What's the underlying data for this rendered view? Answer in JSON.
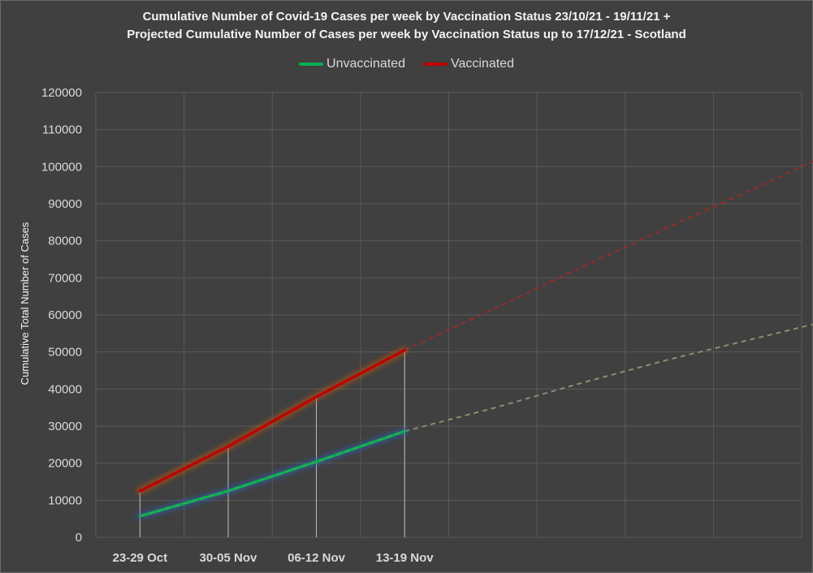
{
  "chart_data": {
    "type": "line",
    "title_line1": "Cumulative Number of Covid-19 Cases per week by Vaccination Status 23/10/21 - 19/11/21 +",
    "title_line2": "Projected Cumulative Number of Cases per week by Vaccination Status up to 17/12/21 - Scotland",
    "xlabel": "",
    "ylabel": "Cumulative Total Number of Cases",
    "ylim": [
      0,
      120000
    ],
    "yticks": [
      0,
      10000,
      20000,
      30000,
      40000,
      50000,
      60000,
      70000,
      80000,
      90000,
      100000,
      110000,
      120000
    ],
    "categories": [
      "23-29 Oct",
      "30-05 Nov",
      "06-12 Nov",
      "13-19 Nov"
    ],
    "legend_position": "top",
    "series": [
      {
        "name": "Unvaccinated",
        "color": "#00b050",
        "values": [
          5700,
          12500,
          20400,
          28600
        ],
        "projection_color": "#8c8c74",
        "projection": [
          28600,
          34800,
          41600,
          48000,
          53800,
          59600
        ]
      },
      {
        "name": "Vaccinated",
        "color": "#c00000",
        "values": [
          12500,
          24500,
          37900,
          50500
        ],
        "projection_color": "#9a2a2a",
        "projection": [
          50500,
          61500,
          72800,
          83800,
          94500,
          105500
        ]
      }
    ]
  }
}
